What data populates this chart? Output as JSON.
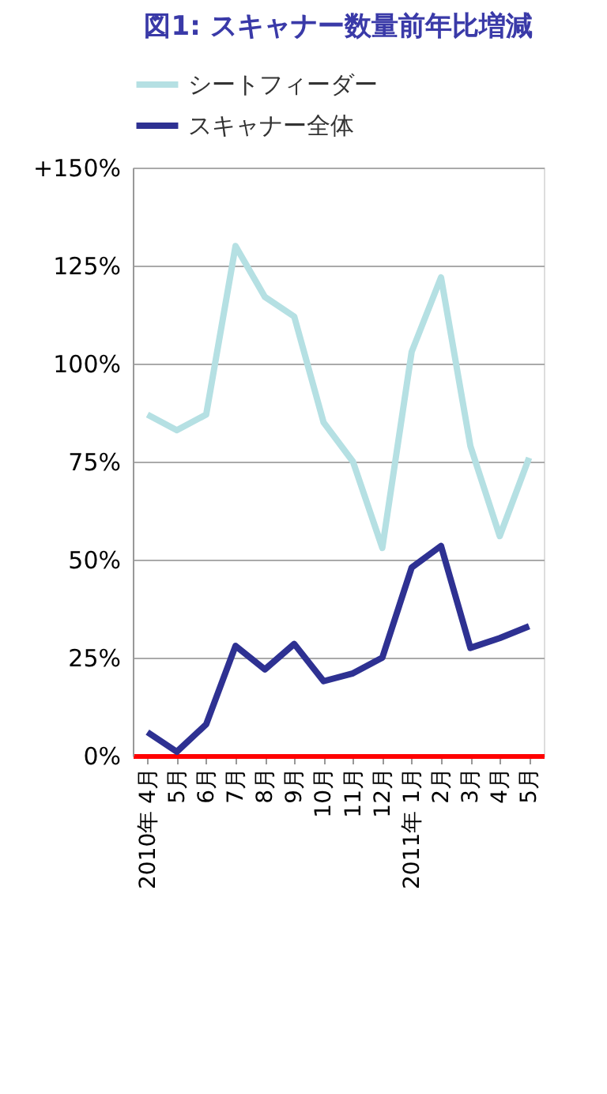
{
  "chart_data": {
    "type": "line",
    "title": "図1: スキャナー数量前年比増減",
    "categories": [
      "2010年 4月",
      "5月",
      "6月",
      "7月",
      "8月",
      "9月",
      "10月",
      "11月",
      "12月",
      "2011年 1月",
      "2月",
      "3月",
      "4月",
      "5月"
    ],
    "series": [
      {
        "name": "シートフィーダー",
        "color": "#b5e0e3",
        "values": [
          87,
          83,
          87,
          130,
          117,
          112,
          85,
          75,
          53,
          103,
          122,
          79,
          56,
          76
        ]
      },
      {
        "name": "スキャナー全体",
        "color": "#2e3192",
        "values": [
          6,
          1,
          8,
          28,
          22,
          28.5,
          19,
          21,
          25,
          48,
          53.5,
          27.5,
          30,
          33
        ]
      }
    ],
    "ylim": [
      0,
      150
    ],
    "yticks": [
      {
        "value": 0,
        "label": "0%"
      },
      {
        "value": 25,
        "label": "25%"
      },
      {
        "value": 50,
        "label": "50%"
      },
      {
        "value": 75,
        "label": "75%"
      },
      {
        "value": 100,
        "label": "100%"
      },
      {
        "value": 125,
        "label": "125%"
      },
      {
        "value": 150,
        "label": "+150%"
      }
    ],
    "grid": "y",
    "legend": "top",
    "marker": "none",
    "line_style": "solid"
  }
}
